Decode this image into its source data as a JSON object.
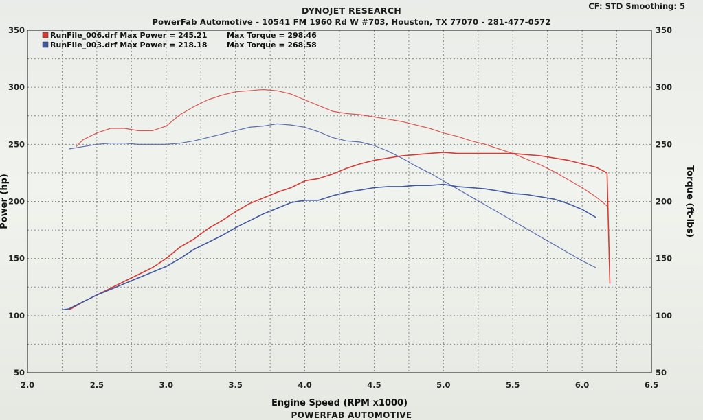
{
  "header": {
    "title": "DYNOJET RESEARCH",
    "subtitle": "PowerFab Automotive - 10541 FM 1960 Rd W #703, Houston, TX 77070 - 281-477-0572",
    "cf": "CF: STD  Smoothing: 5"
  },
  "footer": {
    "text": "POWERFAB AUTOMOTIVE"
  },
  "colors": {
    "run006": "#d83a36",
    "run003": "#4158a0",
    "grid": "#888888",
    "axis": "#333333"
  },
  "chart_data": {
    "type": "line",
    "xlabel": "Engine Speed (RPM x1000)",
    "ylabel_left": "Power (hp)",
    "ylabel_right": "Torque (ft-lbs)",
    "xlim": [
      2.0,
      6.5
    ],
    "ylim_left": [
      50,
      350
    ],
    "ylim_right": [
      50,
      350
    ],
    "x_ticks": [
      "2.0",
      "2.5",
      "3.0",
      "3.5",
      "4.0",
      "4.5",
      "5.0",
      "5.5",
      "6.0",
      "6.5"
    ],
    "y_ticks_left": [
      "50",
      "100",
      "150",
      "200",
      "250",
      "300",
      "350"
    ],
    "y_ticks_right": [
      "50",
      "100",
      "150",
      "200",
      "250",
      "300",
      "350"
    ],
    "grid": true,
    "legend": [
      {
        "file": "RunFile_006.drf",
        "power_text": "Max Power = 245.21",
        "torque_text": "Max Torque = 298.46",
        "color": "#d83a36"
      },
      {
        "file": "RunFile_003.drf",
        "power_text": "Max Power = 218.18",
        "torque_text": "Max Torque = 268.58",
        "color": "#4158a0"
      }
    ],
    "series": [
      {
        "name": "RunFile_006.drf",
        "measure": "power",
        "color": "#d83a36",
        "x": [
          2.3,
          2.4,
          2.5,
          2.6,
          2.7,
          2.8,
          2.9,
          3.0,
          3.1,
          3.2,
          3.3,
          3.4,
          3.5,
          3.6,
          3.7,
          3.8,
          3.9,
          4.0,
          4.1,
          4.2,
          4.3,
          4.4,
          4.5,
          4.6,
          4.7,
          4.8,
          4.9,
          5.0,
          5.1,
          5.2,
          5.3,
          5.4,
          5.5,
          5.6,
          5.7,
          5.8,
          5.9,
          6.0,
          6.1,
          6.18,
          6.2
        ],
        "y": [
          105,
          112,
          118,
          124,
          130,
          136,
          142,
          150,
          160,
          167,
          176,
          183,
          191,
          198,
          203,
          208,
          212,
          218,
          220,
          224,
          229,
          233,
          236,
          238,
          240,
          241,
          242,
          243,
          242,
          242,
          242,
          242,
          242,
          241,
          240,
          238,
          236,
          233,
          230,
          225,
          128
        ]
      },
      {
        "name": "RunFile_003.drf",
        "measure": "power",
        "color": "#4158a0",
        "x": [
          2.25,
          2.3,
          2.4,
          2.5,
          2.6,
          2.7,
          2.8,
          2.9,
          3.0,
          3.1,
          3.2,
          3.3,
          3.4,
          3.5,
          3.6,
          3.7,
          3.8,
          3.9,
          4.0,
          4.1,
          4.2,
          4.3,
          4.4,
          4.5,
          4.6,
          4.7,
          4.8,
          4.9,
          5.0,
          5.1,
          5.2,
          5.3,
          5.4,
          5.5,
          5.6,
          5.7,
          5.8,
          5.9,
          6.0,
          6.1
        ],
        "y": [
          105,
          106,
          112,
          118,
          123,
          128,
          133,
          138,
          143,
          150,
          158,
          164,
          170,
          177,
          183,
          189,
          194,
          199,
          201,
          201,
          205,
          208,
          210,
          212,
          213,
          213,
          214,
          214,
          215,
          213,
          212,
          211,
          209,
          207,
          206,
          204,
          202,
          198,
          193,
          186
        ]
      },
      {
        "name": "RunFile_006.drf",
        "measure": "torque",
        "color": "#d83a36",
        "x": [
          2.35,
          2.4,
          2.5,
          2.6,
          2.7,
          2.8,
          2.9,
          3.0,
          3.1,
          3.2,
          3.3,
          3.4,
          3.5,
          3.6,
          3.7,
          3.8,
          3.9,
          4.0,
          4.1,
          4.2,
          4.3,
          4.4,
          4.5,
          4.6,
          4.7,
          4.8,
          4.9,
          5.0,
          5.1,
          5.2,
          5.3,
          5.4,
          5.5,
          5.6,
          5.7,
          5.8,
          5.9,
          6.0,
          6.1,
          6.18
        ],
        "y": [
          248,
          254,
          260,
          264,
          264,
          262,
          262,
          266,
          276,
          283,
          289,
          293,
          296,
          297,
          298,
          297,
          294,
          289,
          284,
          279,
          277,
          276,
          274,
          272,
          270,
          267,
          264,
          260,
          257,
          253,
          250,
          246,
          242,
          237,
          232,
          226,
          219,
          212,
          204,
          196
        ]
      },
      {
        "name": "RunFile_003.drf",
        "measure": "torque",
        "color": "#4158a0",
        "x": [
          2.3,
          2.4,
          2.5,
          2.6,
          2.7,
          2.8,
          2.9,
          3.0,
          3.1,
          3.2,
          3.3,
          3.4,
          3.5,
          3.6,
          3.7,
          3.8,
          3.9,
          4.0,
          4.1,
          4.2,
          4.3,
          4.4,
          4.5,
          4.6,
          4.7,
          4.8,
          4.9,
          5.0,
          5.1,
          5.2,
          5.3,
          5.4,
          5.5,
          5.6,
          5.7,
          5.8,
          5.9,
          6.0,
          6.1
        ],
        "y": [
          246,
          248,
          250,
          251,
          251,
          250,
          250,
          250,
          251,
          253,
          256,
          259,
          262,
          265,
          266,
          268,
          267,
          265,
          261,
          256,
          253,
          252,
          249,
          244,
          238,
          231,
          225,
          218,
          211,
          204,
          197,
          190,
          183,
          176,
          169,
          162,
          155,
          148,
          142
        ]
      }
    ]
  }
}
